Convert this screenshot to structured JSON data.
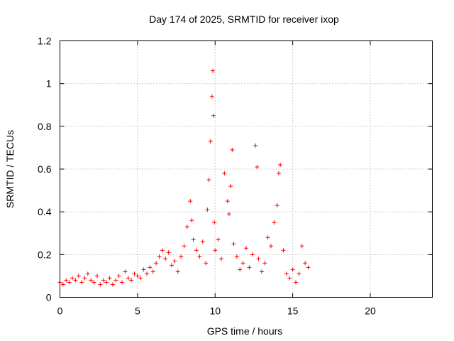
{
  "chart_data": {
    "type": "scatter",
    "title": "Day 174 of 2025, SRMTID for receiver ixop",
    "xlabel": "GPS time / hours",
    "ylabel": "SRMTID / TECUs",
    "xlim": [
      0,
      24
    ],
    "ylim": [
      0,
      1.2
    ],
    "xticks": [
      0,
      5,
      10,
      15,
      20
    ],
    "yticks": [
      0,
      0.2,
      0.4,
      0.6,
      0.8,
      1,
      1.2
    ],
    "ytick_labels": [
      "0",
      "0.2",
      "0.4",
      "0.6",
      "0.8",
      "1",
      "1.2"
    ],
    "grid": true,
    "marker": "+",
    "color": "#ff0000",
    "series": [
      {
        "name": "SRMTID",
        "x": [
          0.0,
          0.2,
          0.4,
          0.6,
          0.8,
          1.0,
          1.2,
          1.4,
          1.6,
          1.8,
          2.0,
          2.2,
          2.4,
          2.6,
          2.8,
          3.0,
          3.2,
          3.4,
          3.6,
          3.8,
          4.0,
          4.2,
          4.4,
          4.6,
          4.8,
          5.0,
          5.2,
          5.4,
          5.6,
          5.8,
          6.0,
          6.2,
          6.4,
          6.6,
          6.8,
          7.0,
          7.2,
          7.4,
          7.6,
          7.8,
          8.0,
          8.2,
          8.4,
          8.5,
          8.6,
          8.8,
          9.0,
          9.2,
          9.4,
          9.5,
          9.6,
          9.7,
          9.8,
          9.85,
          9.9,
          9.95,
          10.0,
          10.2,
          10.4,
          10.6,
          10.8,
          10.9,
          11.0,
          11.1,
          11.2,
          11.4,
          11.6,
          11.8,
          12.0,
          12.2,
          12.4,
          12.6,
          12.7,
          12.8,
          13.0,
          13.2,
          13.4,
          13.6,
          13.8,
          14.0,
          14.1,
          14.2,
          14.4,
          14.6,
          14.8,
          15.0,
          15.2,
          15.4,
          15.6,
          15.8,
          16.0
        ],
        "y": [
          0.07,
          0.06,
          0.08,
          0.07,
          0.09,
          0.08,
          0.1,
          0.07,
          0.09,
          0.11,
          0.08,
          0.07,
          0.1,
          0.06,
          0.08,
          0.07,
          0.09,
          0.06,
          0.08,
          0.1,
          0.07,
          0.12,
          0.09,
          0.08,
          0.11,
          0.1,
          0.09,
          0.13,
          0.11,
          0.14,
          0.12,
          0.16,
          0.19,
          0.22,
          0.18,
          0.21,
          0.15,
          0.17,
          0.12,
          0.19,
          0.24,
          0.33,
          0.45,
          0.36,
          0.27,
          0.22,
          0.19,
          0.26,
          0.16,
          0.41,
          0.55,
          0.73,
          0.94,
          1.06,
          0.85,
          0.35,
          0.22,
          0.27,
          0.18,
          0.58,
          0.45,
          0.39,
          0.52,
          0.69,
          0.25,
          0.19,
          0.13,
          0.16,
          0.23,
          0.14,
          0.2,
          0.71,
          0.61,
          0.18,
          0.12,
          0.16,
          0.28,
          0.24,
          0.35,
          0.43,
          0.58,
          0.62,
          0.22,
          0.11,
          0.09,
          0.13,
          0.07,
          0.11,
          0.24,
          0.16,
          0.14
        ]
      }
    ]
  }
}
